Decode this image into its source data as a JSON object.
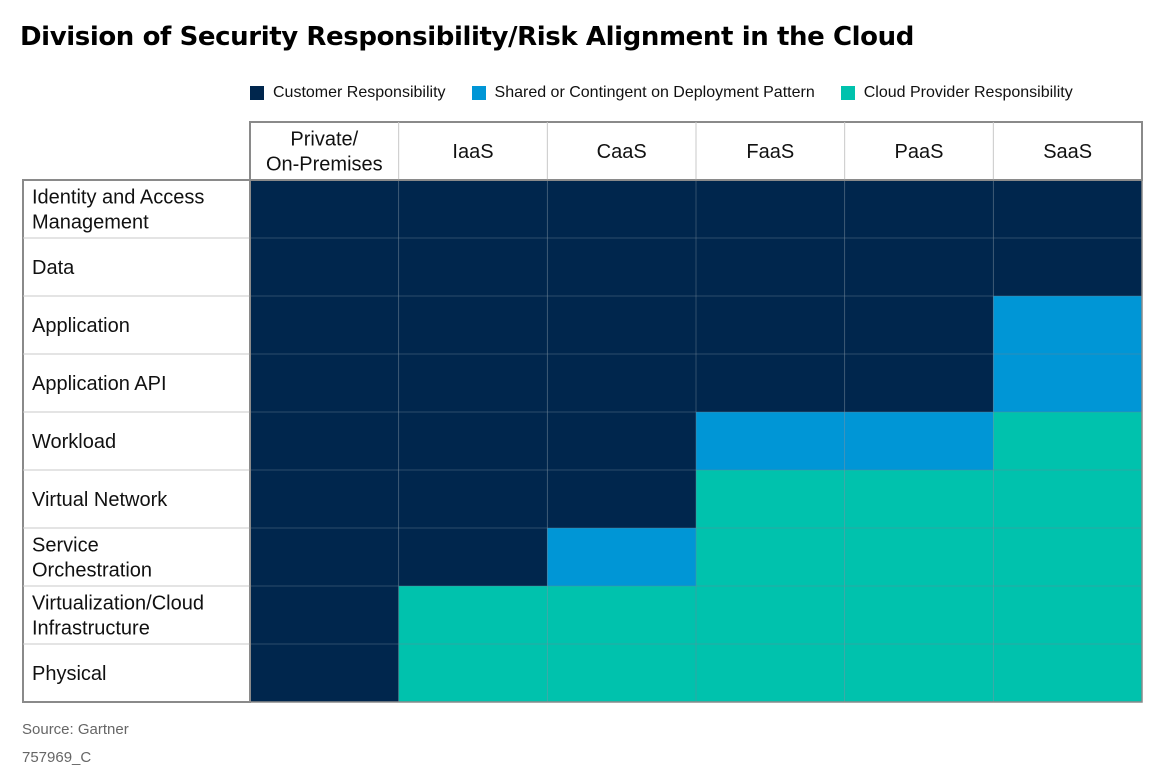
{
  "title": "Division of Security Responsibility/Risk Alignment in the Cloud",
  "legend": [
    {
      "key": "C",
      "label": "Customer Responsibility",
      "color": "#00264d"
    },
    {
      "key": "S",
      "label": "Shared or Contingent on Deployment Pattern",
      "color": "#0096d6"
    },
    {
      "key": "P",
      "label": "Cloud Provider Responsibility",
      "color": "#00c2ad"
    }
  ],
  "chart_data": {
    "type": "heatmap",
    "columns": [
      [
        "Private/",
        "On-Premises"
      ],
      [
        "IaaS"
      ],
      [
        "CaaS"
      ],
      [
        "FaaS"
      ],
      [
        "PaaS"
      ],
      [
        "SaaS"
      ]
    ],
    "rows": [
      {
        "label": [
          "Identity and Access",
          "Management"
        ],
        "cells": [
          "C",
          "C",
          "C",
          "C",
          "C",
          "C"
        ]
      },
      {
        "label": [
          "Data"
        ],
        "cells": [
          "C",
          "C",
          "C",
          "C",
          "C",
          "C"
        ]
      },
      {
        "label": [
          "Application"
        ],
        "cells": [
          "C",
          "C",
          "C",
          "C",
          "C",
          "S"
        ]
      },
      {
        "label": [
          "Application API"
        ],
        "cells": [
          "C",
          "C",
          "C",
          "C",
          "C",
          "S"
        ]
      },
      {
        "label": [
          "Workload"
        ],
        "cells": [
          "C",
          "C",
          "C",
          "S",
          "S",
          "P"
        ]
      },
      {
        "label": [
          "Virtual Network"
        ],
        "cells": [
          "C",
          "C",
          "C",
          "P",
          "P",
          "P"
        ]
      },
      {
        "label": [
          "Service",
          "Orchestration"
        ],
        "cells": [
          "C",
          "C",
          "S",
          "P",
          "P",
          "P"
        ]
      },
      {
        "label": [
          "Virtualization/Cloud",
          "Infrastructure"
        ],
        "cells": [
          "C",
          "P",
          "P",
          "P",
          "P",
          "P"
        ]
      },
      {
        "label": [
          "Physical"
        ],
        "cells": [
          "C",
          "P",
          "P",
          "P",
          "P",
          "P"
        ]
      }
    ]
  },
  "footer": {
    "source": "Source: Gartner",
    "id": "757969_C"
  }
}
